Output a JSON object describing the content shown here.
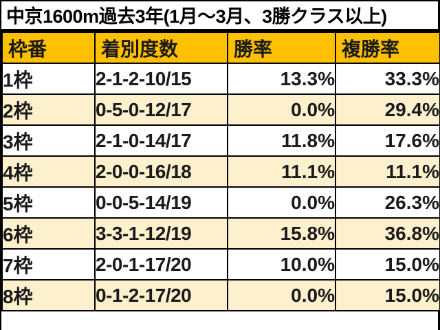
{
  "title": "中京1600m過去3年(1月～3月、3勝クラス以上)",
  "table": {
    "headers": [
      "枠番",
      "着別度数",
      "勝率",
      "複勝率"
    ],
    "rows": [
      {
        "waku": "1枠",
        "record": "2-1-2-10/15",
        "win": "13.3%",
        "place": "33.3%"
      },
      {
        "waku": "2枠",
        "record": "0-5-0-12/17",
        "win": "0.0%",
        "place": "29.4%"
      },
      {
        "waku": "3枠",
        "record": "2-1-0-14/17",
        "win": "11.8%",
        "place": "17.6%"
      },
      {
        "waku": "4枠",
        "record": "2-0-0-16/18",
        "win": "11.1%",
        "place": "11.1%"
      },
      {
        "waku": "5枠",
        "record": "0-0-5-14/19",
        "win": "0.0%",
        "place": "26.3%"
      },
      {
        "waku": "6枠",
        "record": "3-3-1-12/19",
        "win": "15.8%",
        "place": "36.8%"
      },
      {
        "waku": "7枠",
        "record": "2-0-1-17/20",
        "win": "10.0%",
        "place": "15.0%"
      },
      {
        "waku": "8枠",
        "record": "0-1-2-17/20",
        "win": "0.0%",
        "place": "15.0%"
      }
    ]
  },
  "colors": {
    "header_bg": "#FFC000",
    "row_bg": "#FFFFFF",
    "row_alt_bg": "#FCF0CD",
    "border": "#000000",
    "text": "#1A1A1A"
  }
}
